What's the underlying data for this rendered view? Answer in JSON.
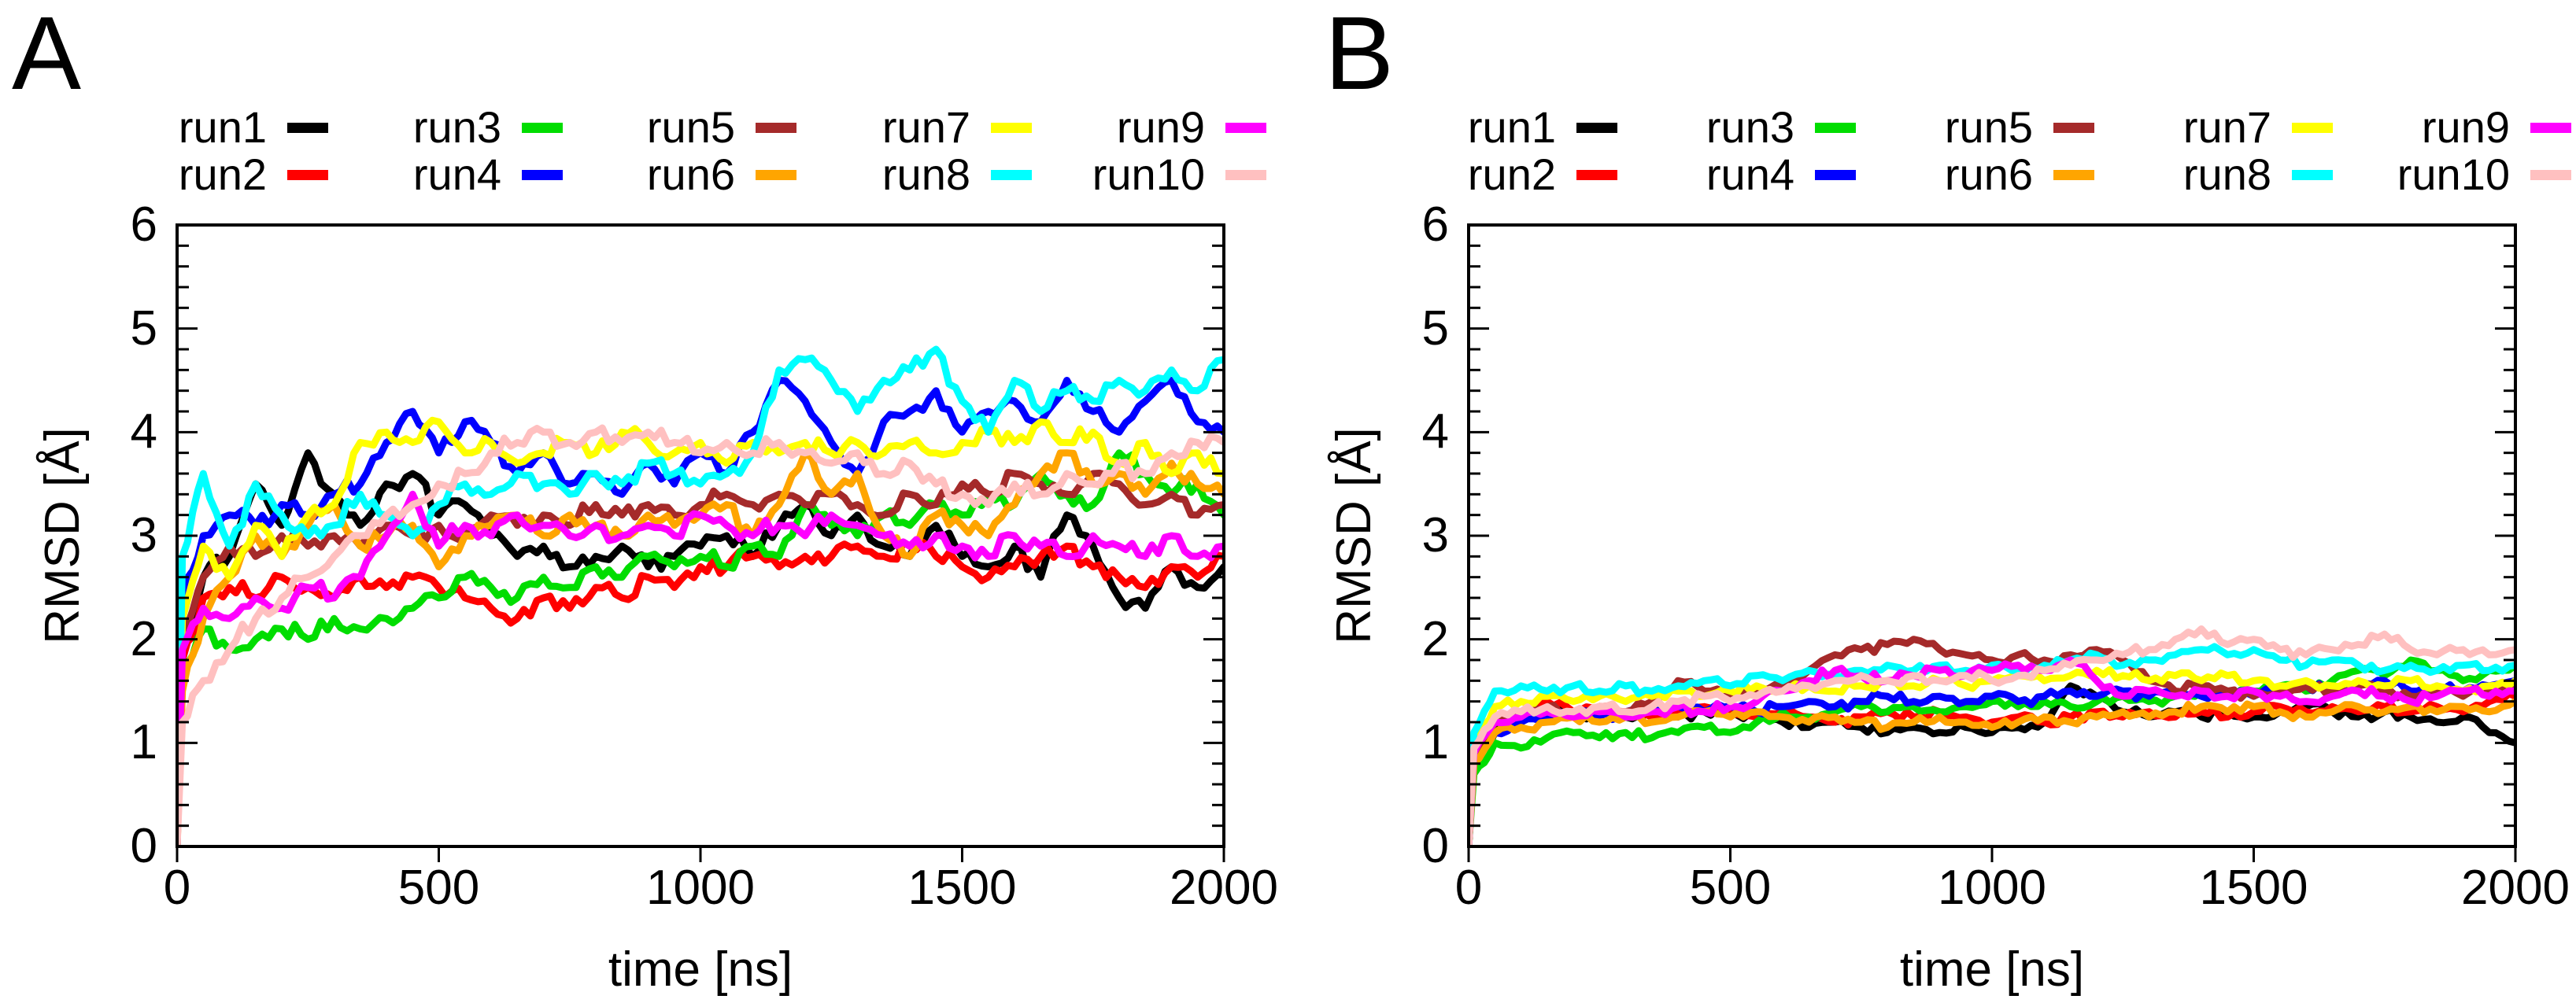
{
  "figure": {
    "background": "#ffffff",
    "panels": [
      {
        "letter": "A"
      },
      {
        "letter": "B"
      }
    ]
  },
  "chart_data": [
    {
      "type": "line",
      "panel": "A",
      "title": "",
      "xlabel": "time [ns]",
      "ylabel": "RMSD [Å]",
      "xlim": [
        0,
        2000
      ],
      "ylim": [
        0,
        6
      ],
      "x_ticks": [
        0,
        500,
        1000,
        1500,
        2000
      ],
      "y_ticks": [
        0,
        1,
        2,
        3,
        4,
        5,
        6
      ],
      "y_minor_tick_step": 0.2,
      "grid": false,
      "legend_position": "top",
      "legend_columns": 5,
      "x": [
        0,
        10,
        50,
        100,
        150,
        200,
        250,
        300,
        350,
        400,
        450,
        500,
        550,
        600,
        650,
        700,
        750,
        800,
        850,
        900,
        950,
        1000,
        1050,
        1100,
        1150,
        1200,
        1250,
        1300,
        1350,
        1400,
        1450,
        1500,
        1550,
        1600,
        1650,
        1700,
        1750,
        1800,
        1850,
        1900,
        1950,
        2000
      ],
      "series": [
        {
          "name": "run1",
          "color": "#000000",
          "values": [
            0,
            2.0,
            2.6,
            2.8,
            3.5,
            3.1,
            3.8,
            3.4,
            3.1,
            3.5,
            3.6,
            3.2,
            3.3,
            3.0,
            2.8,
            2.9,
            2.7,
            2.8,
            2.9,
            2.7,
            2.8,
            2.9,
            3.0,
            2.8,
            3.1,
            3.3,
            3.0,
            3.2,
            2.9,
            2.8,
            3.1,
            2.8,
            2.7,
            2.9,
            2.6,
            3.2,
            2.9,
            2.4,
            2.3,
            2.7,
            2.5,
            2.7
          ]
        },
        {
          "name": "run2",
          "color": "#ff0000",
          "values": [
            0,
            1.8,
            2.4,
            2.5,
            2.4,
            2.6,
            2.5,
            2.4,
            2.6,
            2.5,
            2.6,
            2.5,
            2.4,
            2.3,
            2.2,
            2.4,
            2.3,
            2.5,
            2.4,
            2.6,
            2.5,
            2.7,
            2.7,
            2.8,
            2.7,
            2.8,
            2.8,
            2.9,
            2.8,
            2.9,
            2.8,
            2.7,
            2.6,
            2.7,
            2.8,
            2.9,
            2.7,
            2.6,
            2.5,
            2.7,
            2.6,
            2.8
          ]
        },
        {
          "name": "run3",
          "color": "#00dd00",
          "values": [
            0,
            1.7,
            2.1,
            1.9,
            2.0,
            2.1,
            2.0,
            2.2,
            2.1,
            2.2,
            2.3,
            2.4,
            2.6,
            2.5,
            2.4,
            2.6,
            2.5,
            2.7,
            2.6,
            2.8,
            2.7,
            2.8,
            2.7,
            2.9,
            2.8,
            3.3,
            3.1,
            3.0,
            3.2,
            3.1,
            3.3,
            3.2,
            3.4,
            3.3,
            3.6,
            3.4,
            3.3,
            3.8,
            3.6,
            3.4,
            3.5,
            3.2
          ]
        },
        {
          "name": "run4",
          "color": "#0000ff",
          "values": [
            0,
            2.4,
            3.0,
            3.2,
            3.1,
            3.3,
            3.2,
            3.4,
            3.5,
            3.9,
            4.2,
            3.8,
            4.1,
            3.9,
            3.6,
            3.8,
            3.5,
            3.6,
            3.4,
            3.7,
            3.5,
            3.8,
            3.6,
            4.0,
            4.5,
            4.3,
            3.9,
            3.6,
            4.1,
            4.2,
            4.4,
            4.0,
            4.2,
            4.3,
            4.1,
            4.5,
            4.2,
            4.0,
            4.3,
            4.5,
            4.1,
            4.0
          ]
        },
        {
          "name": "run5",
          "color": "#a52a2a",
          "values": [
            0,
            2.0,
            2.6,
            2.9,
            2.8,
            3.0,
            2.9,
            3.0,
            2.9,
            3.1,
            3.0,
            3.1,
            3.0,
            3.2,
            3.1,
            3.2,
            3.1,
            3.3,
            3.2,
            3.3,
            3.2,
            3.3,
            3.4,
            3.3,
            3.4,
            3.3,
            3.4,
            3.3,
            3.2,
            3.4,
            3.3,
            3.5,
            3.4,
            3.6,
            3.5,
            3.4,
            3.6,
            3.5,
            3.3,
            3.4,
            3.2,
            3.3
          ]
        },
        {
          "name": "run6",
          "color": "#ffa500",
          "values": [
            0,
            1.5,
            2.2,
            2.6,
            3.0,
            2.8,
            3.1,
            3.3,
            2.9,
            3.0,
            3.1,
            2.7,
            3.0,
            3.1,
            3.2,
            3.0,
            3.2,
            3.1,
            3.0,
            3.2,
            3.1,
            3.2,
            3.3,
            3.0,
            3.3,
            3.8,
            3.4,
            3.6,
            3.0,
            2.8,
            3.2,
            3.1,
            3.0,
            3.3,
            3.6,
            3.8,
            3.5,
            3.6,
            3.4,
            3.7,
            3.5,
            3.4
          ]
        },
        {
          "name": "run7",
          "color": "#ffff00",
          "values": [
            0,
            2.2,
            2.9,
            2.6,
            3.1,
            2.8,
            3.2,
            3.3,
            3.9,
            4.0,
            3.9,
            4.1,
            3.8,
            3.9,
            3.7,
            3.8,
            3.9,
            3.8,
            4.0,
            3.9,
            3.8,
            3.9,
            3.7,
            3.9,
            3.8,
            3.9,
            3.8,
            3.9,
            3.8,
            3.9,
            3.8,
            3.9,
            4.0,
            3.9,
            4.1,
            3.9,
            4.0,
            3.7,
            3.9,
            3.6,
            3.8,
            3.6
          ]
        },
        {
          "name": "run8",
          "color": "#00ffff",
          "values": [
            0,
            2.8,
            3.6,
            2.9,
            3.5,
            3.2,
            3.0,
            3.1,
            3.4,
            3.2,
            3.0,
            3.3,
            3.5,
            3.4,
            3.6,
            3.5,
            3.4,
            3.6,
            3.5,
            3.7,
            3.6,
            3.5,
            3.6,
            3.8,
            4.6,
            4.7,
            4.5,
            4.2,
            4.5,
            4.6,
            4.8,
            4.3,
            4.0,
            4.5,
            4.2,
            4.4,
            4.3,
            4.5,
            4.4,
            4.6,
            4.4,
            4.7
          ]
        },
        {
          "name": "run9",
          "color": "#ff00ff",
          "values": [
            0,
            1.9,
            2.3,
            2.2,
            2.4,
            2.3,
            2.5,
            2.4,
            2.6,
            3.0,
            3.4,
            2.9,
            3.1,
            3.0,
            3.2,
            3.1,
            3.0,
            3.1,
            3.0,
            3.1,
            3.0,
            3.2,
            3.1,
            3.0,
            3.1,
            3.0,
            3.2,
            3.1,
            3.0,
            2.9,
            3.0,
            2.9,
            2.8,
            3.0,
            2.9,
            2.8,
            3.0,
            2.9,
            2.8,
            3.0,
            2.8,
            2.9
          ]
        },
        {
          "name": "run10",
          "color": "#ffc0c0",
          "values": [
            0,
            1.2,
            1.6,
            1.9,
            2.2,
            2.4,
            2.6,
            2.8,
            3.0,
            3.2,
            3.3,
            3.5,
            3.6,
            3.8,
            3.9,
            4.0,
            3.9,
            4.0,
            3.9,
            4.0,
            3.9,
            3.8,
            3.9,
            3.8,
            3.9,
            3.8,
            3.7,
            3.8,
            3.6,
            3.7,
            3.5,
            3.4,
            3.3,
            3.5,
            3.4,
            3.6,
            3.5,
            3.7,
            3.6,
            3.8,
            3.9,
            3.9
          ]
        }
      ]
    },
    {
      "type": "line",
      "panel": "B",
      "title": "",
      "xlabel": "time [ns]",
      "ylabel": "RMSD [Å]",
      "xlim": [
        0,
        2000
      ],
      "ylim": [
        0,
        6
      ],
      "x_ticks": [
        0,
        500,
        1000,
        1500,
        2000
      ],
      "y_ticks": [
        0,
        1,
        2,
        3,
        4,
        5,
        6
      ],
      "y_minor_tick_step": 0.2,
      "grid": false,
      "legend_position": "top",
      "legend_columns": 5,
      "x": [
        0,
        10,
        50,
        100,
        150,
        200,
        250,
        300,
        350,
        400,
        450,
        500,
        550,
        600,
        650,
        700,
        750,
        800,
        850,
        900,
        950,
        1000,
        1050,
        1100,
        1150,
        1200,
        1250,
        1300,
        1350,
        1400,
        1450,
        1500,
        1550,
        1600,
        1650,
        1700,
        1750,
        1800,
        1850,
        1900,
        1950,
        2000
      ],
      "series": [
        {
          "name": "run1",
          "color": "#000000",
          "values": [
            0,
            0.8,
            1.1,
            1.2,
            1.3,
            1.25,
            1.3,
            1.25,
            1.3,
            1.25,
            1.3,
            1.3,
            1.25,
            1.2,
            1.15,
            1.2,
            1.15,
            1.1,
            1.15,
            1.1,
            1.15,
            1.1,
            1.15,
            1.2,
            1.55,
            1.45,
            1.3,
            1.25,
            1.3,
            1.25,
            1.3,
            1.25,
            1.3,
            1.35,
            1.3,
            1.25,
            1.3,
            1.25,
            1.2,
            1.25,
            1.1,
            1.0
          ]
        },
        {
          "name": "run2",
          "color": "#ff0000",
          "values": [
            0,
            0.9,
            1.2,
            1.25,
            1.4,
            1.3,
            1.35,
            1.3,
            1.25,
            1.3,
            1.35,
            1.3,
            1.25,
            1.3,
            1.25,
            1.2,
            1.25,
            1.3,
            1.25,
            1.3,
            1.25,
            1.2,
            1.25,
            1.2,
            1.25,
            1.3,
            1.25,
            1.3,
            1.25,
            1.3,
            1.25,
            1.3,
            1.35,
            1.3,
            1.35,
            1.3,
            1.35,
            1.3,
            1.35,
            1.3,
            1.4,
            1.45
          ]
        },
        {
          "name": "run3",
          "color": "#00dd00",
          "values": [
            0,
            0.7,
            1.0,
            0.95,
            1.05,
            1.1,
            1.05,
            1.1,
            1.05,
            1.1,
            1.15,
            1.1,
            1.2,
            1.3,
            1.25,
            1.3,
            1.35,
            1.3,
            1.35,
            1.3,
            1.35,
            1.4,
            1.35,
            1.4,
            1.35,
            1.4,
            1.45,
            1.4,
            1.45,
            1.5,
            1.45,
            1.5,
            1.55,
            1.5,
            1.6,
            1.7,
            1.65,
            1.8,
            1.7,
            1.6,
            1.7,
            1.75
          ]
        },
        {
          "name": "run4",
          "color": "#0000ff",
          "values": [
            0,
            0.85,
            1.1,
            1.2,
            1.25,
            1.3,
            1.25,
            1.3,
            1.3,
            1.35,
            1.3,
            1.35,
            1.3,
            1.35,
            1.4,
            1.35,
            1.4,
            1.45,
            1.4,
            1.45,
            1.4,
            1.45,
            1.4,
            1.45,
            1.5,
            1.45,
            1.5,
            1.45,
            1.5,
            1.45,
            1.5,
            1.45,
            1.5,
            1.55,
            1.5,
            1.55,
            1.6,
            1.5,
            1.55,
            1.5,
            1.55,
            1.6
          ]
        },
        {
          "name": "run5",
          "color": "#a52a2a",
          "values": [
            0,
            0.9,
            1.2,
            1.3,
            1.35,
            1.3,
            1.35,
            1.3,
            1.4,
            1.6,
            1.5,
            1.45,
            1.5,
            1.55,
            1.7,
            1.85,
            1.9,
            1.95,
            2.0,
            1.9,
            1.85,
            1.8,
            1.85,
            1.8,
            1.85,
            1.9,
            1.8,
            1.6,
            1.5,
            1.55,
            1.5,
            1.45,
            1.5,
            1.55,
            1.5,
            1.55,
            1.5,
            1.45,
            1.5,
            1.45,
            1.5,
            1.55
          ]
        },
        {
          "name": "run6",
          "color": "#ffa500",
          "values": [
            0,
            0.8,
            1.1,
            1.15,
            1.2,
            1.25,
            1.2,
            1.25,
            1.2,
            1.25,
            1.3,
            1.25,
            1.3,
            1.25,
            1.2,
            1.25,
            1.2,
            1.15,
            1.2,
            1.25,
            1.2,
            1.15,
            1.2,
            1.25,
            1.2,
            1.25,
            1.3,
            1.25,
            1.3,
            1.35,
            1.3,
            1.35,
            1.3,
            1.25,
            1.3,
            1.35,
            1.3,
            1.35,
            1.3,
            1.35,
            1.3,
            1.4
          ]
        },
        {
          "name": "run7",
          "color": "#ffff00",
          "values": [
            0,
            1.0,
            1.35,
            1.4,
            1.45,
            1.4,
            1.45,
            1.4,
            1.45,
            1.5,
            1.45,
            1.5,
            1.55,
            1.5,
            1.55,
            1.5,
            1.55,
            1.6,
            1.55,
            1.6,
            1.55,
            1.6,
            1.65,
            1.6,
            1.65,
            1.7,
            1.65,
            1.6,
            1.65,
            1.6,
            1.65,
            1.6,
            1.55,
            1.6,
            1.55,
            1.6,
            1.55,
            1.6,
            1.55,
            1.5,
            1.55,
            1.6
          ]
        },
        {
          "name": "run8",
          "color": "#00ffff",
          "values": [
            0,
            1.1,
            1.5,
            1.55,
            1.5,
            1.55,
            1.5,
            1.55,
            1.5,
            1.55,
            1.6,
            1.55,
            1.65,
            1.6,
            1.7,
            1.65,
            1.7,
            1.75,
            1.7,
            1.75,
            1.7,
            1.75,
            1.7,
            1.75,
            1.8,
            1.85,
            1.75,
            1.8,
            1.85,
            1.9,
            1.85,
            1.9,
            1.8,
            1.75,
            1.8,
            1.75,
            1.7,
            1.75,
            1.7,
            1.75,
            1.7,
            1.75
          ]
        },
        {
          "name": "run9",
          "color": "#ff00ff",
          "values": [
            0,
            0.9,
            1.2,
            1.25,
            1.3,
            1.25,
            1.3,
            1.25,
            1.3,
            1.35,
            1.3,
            1.35,
            1.4,
            1.5,
            1.6,
            1.7,
            1.65,
            1.6,
            1.65,
            1.7,
            1.65,
            1.7,
            1.75,
            1.7,
            1.8,
            1.6,
            1.45,
            1.5,
            1.45,
            1.5,
            1.45,
            1.5,
            1.45,
            1.4,
            1.45,
            1.5,
            1.45,
            1.4,
            1.45,
            1.5,
            1.45,
            1.5
          ]
        },
        {
          "name": "run10",
          "color": "#ffc0c0",
          "values": [
            0,
            0.95,
            1.25,
            1.3,
            1.35,
            1.3,
            1.35,
            1.3,
            1.35,
            1.4,
            1.45,
            1.4,
            1.45,
            1.5,
            1.55,
            1.6,
            1.65,
            1.6,
            1.65,
            1.6,
            1.65,
            1.6,
            1.65,
            1.7,
            1.75,
            1.8,
            1.85,
            1.9,
            2.0,
            2.1,
            1.95,
            2.0,
            1.9,
            1.85,
            1.9,
            1.95,
            2.05,
            1.9,
            1.85,
            1.9,
            1.85,
            1.9
          ]
        }
      ]
    }
  ]
}
